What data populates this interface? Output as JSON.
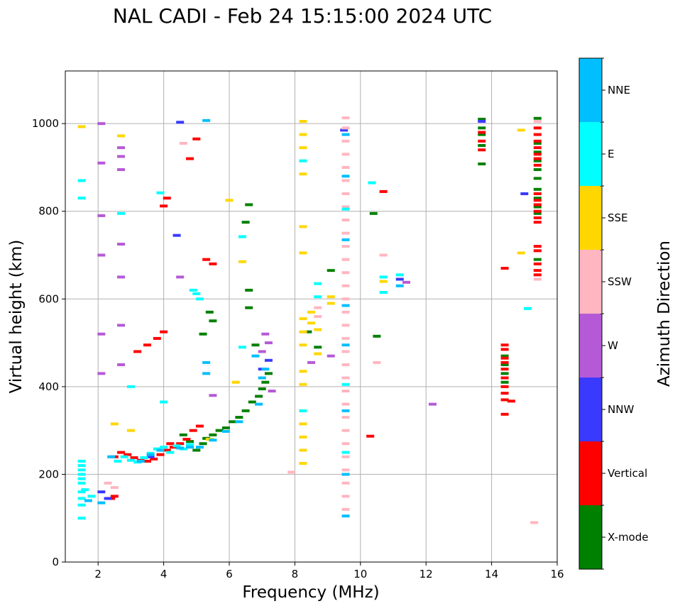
{
  "chart_data": {
    "type": "scatter",
    "title": "NAL CADI - Feb 24 15:15:00 2024 UTC",
    "xlabel": "Frequency (MHz)",
    "ylabel": "Virtual height (km)",
    "xlim": [
      1,
      16
    ],
    "ylim": [
      0,
      1120
    ],
    "xticks": [
      2,
      4,
      6,
      8,
      10,
      12,
      14,
      16
    ],
    "yticks": [
      0,
      200,
      400,
      600,
      800,
      1000
    ],
    "grid": true,
    "colorbar": {
      "label": "Azimuth Direction",
      "categories": [
        "X-mode",
        "Vertical",
        "NNW",
        "W",
        "SSW",
        "SSE",
        "E",
        "NNE"
      ],
      "colors": [
        "#008000",
        "#ff0000",
        "#3a3aff",
        "#b55ad6",
        "#ffb6c1",
        "#ffd700",
        "#00ffff",
        "#00bfff"
      ]
    },
    "series": [
      {
        "name": "X-mode",
        "points": [
          [
            5.0,
            255
          ],
          [
            5.2,
            270
          ],
          [
            5.3,
            282
          ],
          [
            5.5,
            290
          ],
          [
            5.7,
            300
          ],
          [
            5.9,
            306
          ],
          [
            6.1,
            320
          ],
          [
            6.3,
            330
          ],
          [
            6.5,
            345
          ],
          [
            6.7,
            365
          ],
          [
            6.9,
            378
          ],
          [
            7.0,
            395
          ],
          [
            7.1,
            410
          ],
          [
            7.2,
            430
          ],
          [
            5.4,
            570
          ],
          [
            5.5,
            550
          ],
          [
            5.2,
            520
          ],
          [
            6.6,
            620
          ],
          [
            6.6,
            580
          ],
          [
            6.8,
            495
          ],
          [
            6.6,
            815
          ],
          [
            6.5,
            775
          ],
          [
            8.4,
            525
          ],
          [
            8.7,
            490
          ],
          [
            9.1,
            665
          ],
          [
            10.4,
            795
          ],
          [
            10.5,
            515
          ],
          [
            13.7,
            1010
          ],
          [
            13.7,
            990
          ],
          [
            13.7,
            975
          ],
          [
            13.7,
            950
          ],
          [
            13.7,
            908
          ],
          [
            15.4,
            1012
          ],
          [
            15.4,
            955
          ],
          [
            15.4,
            935
          ],
          [
            15.4,
            915
          ],
          [
            15.4,
            895
          ],
          [
            15.4,
            875
          ],
          [
            15.4,
            850
          ],
          [
            15.4,
            830
          ],
          [
            15.4,
            810
          ],
          [
            15.4,
            795
          ],
          [
            15.4,
            690
          ],
          [
            14.4,
            470
          ],
          [
            14.4,
            450
          ],
          [
            14.4,
            430
          ],
          [
            14.4,
            410
          ],
          [
            4.6,
            290
          ],
          [
            4.8,
            275
          ]
        ]
      },
      {
        "name": "Vertical",
        "points": [
          [
            2.5,
            240
          ],
          [
            2.7,
            250
          ],
          [
            2.9,
            245
          ],
          [
            3.1,
            238
          ],
          [
            3.3,
            232
          ],
          [
            3.5,
            230
          ],
          [
            3.7,
            235
          ],
          [
            3.9,
            245
          ],
          [
            4.1,
            255
          ],
          [
            4.3,
            262
          ],
          [
            4.5,
            270
          ],
          [
            4.7,
            280
          ],
          [
            4.9,
            300
          ],
          [
            5.1,
            310
          ],
          [
            2.4,
            145
          ],
          [
            2.5,
            150
          ],
          [
            3.2,
            480
          ],
          [
            3.5,
            495
          ],
          [
            3.8,
            510
          ],
          [
            4.0,
            525
          ],
          [
            4.2,
            270
          ],
          [
            4.0,
            812
          ],
          [
            4.1,
            830
          ],
          [
            5.0,
            965
          ],
          [
            4.8,
            920
          ],
          [
            5.3,
            690
          ],
          [
            5.5,
            680
          ],
          [
            10.7,
            845
          ],
          [
            10.3,
            287
          ],
          [
            13.7,
            980
          ],
          [
            13.7,
            960
          ],
          [
            13.7,
            940
          ],
          [
            14.4,
            670
          ],
          [
            14.4,
            495
          ],
          [
            14.4,
            485
          ],
          [
            14.4,
            465
          ],
          [
            14.4,
            455
          ],
          [
            14.4,
            440
          ],
          [
            14.4,
            420
          ],
          [
            14.4,
            400
          ],
          [
            14.4,
            385
          ],
          [
            14.4,
            370
          ],
          [
            14.4,
            337
          ],
          [
            14.6,
            367
          ],
          [
            15.4,
            990
          ],
          [
            15.4,
            975
          ],
          [
            15.4,
            960
          ],
          [
            15.4,
            945
          ],
          [
            15.4,
            930
          ],
          [
            15.4,
            920
          ],
          [
            15.4,
            905
          ],
          [
            15.4,
            840
          ],
          [
            15.4,
            825
          ],
          [
            15.4,
            815
          ],
          [
            15.4,
            800
          ],
          [
            15.4,
            785
          ],
          [
            15.4,
            775
          ],
          [
            15.4,
            720
          ],
          [
            15.4,
            710
          ],
          [
            15.4,
            680
          ],
          [
            15.4,
            665
          ],
          [
            15.4,
            655
          ]
        ]
      },
      {
        "name": "NNW",
        "points": [
          [
            2.3,
            145
          ],
          [
            3.6,
            240
          ],
          [
            4.4,
            745
          ],
          [
            4.5,
            1003
          ],
          [
            7.2,
            460
          ],
          [
            7.0,
            440
          ],
          [
            13.7,
            1005
          ],
          [
            15.0,
            840
          ],
          [
            11.2,
            645
          ],
          [
            9.5,
            985
          ],
          [
            2.1,
            160
          ]
        ]
      },
      {
        "name": "W",
        "points": [
          [
            2.1,
            1000
          ],
          [
            2.1,
            910
          ],
          [
            2.7,
            945
          ],
          [
            2.7,
            925
          ],
          [
            2.7,
            895
          ],
          [
            2.7,
            725
          ],
          [
            2.1,
            790
          ],
          [
            2.1,
            700
          ],
          [
            2.1,
            520
          ],
          [
            2.1,
            430
          ],
          [
            2.7,
            650
          ],
          [
            2.7,
            540
          ],
          [
            2.7,
            450
          ],
          [
            7.0,
            480
          ],
          [
            7.2,
            500
          ],
          [
            7.1,
            520
          ],
          [
            8.5,
            455
          ],
          [
            9.1,
            470
          ],
          [
            11.4,
            638
          ],
          [
            12.2,
            360
          ],
          [
            5.5,
            380
          ],
          [
            4.5,
            650
          ],
          [
            7.3,
            390
          ]
        ]
      },
      {
        "name": "SSW",
        "points": [
          [
            2.5,
            170
          ],
          [
            2.3,
            180
          ],
          [
            7.9,
            205
          ],
          [
            9.55,
            1013
          ],
          [
            9.55,
            990
          ],
          [
            9.55,
            960
          ],
          [
            9.55,
            930
          ],
          [
            9.55,
            900
          ],
          [
            9.55,
            870
          ],
          [
            9.55,
            840
          ],
          [
            9.55,
            810
          ],
          [
            9.55,
            780
          ],
          [
            9.55,
            750
          ],
          [
            9.55,
            720
          ],
          [
            9.55,
            690
          ],
          [
            9.55,
            660
          ],
          [
            9.55,
            630
          ],
          [
            9.55,
            600
          ],
          [
            9.55,
            570
          ],
          [
            9.55,
            540
          ],
          [
            9.55,
            510
          ],
          [
            9.55,
            480
          ],
          [
            9.55,
            450
          ],
          [
            9.55,
            420
          ],
          [
            9.55,
            390
          ],
          [
            9.55,
            360
          ],
          [
            9.55,
            330
          ],
          [
            9.55,
            300
          ],
          [
            9.55,
            270
          ],
          [
            9.55,
            240
          ],
          [
            9.55,
            210
          ],
          [
            9.55,
            180
          ],
          [
            9.55,
            150
          ],
          [
            9.55,
            120
          ],
          [
            8.7,
            580
          ],
          [
            8.7,
            560
          ],
          [
            10.7,
            700
          ],
          [
            10.5,
            455
          ],
          [
            15.4,
            1005
          ],
          [
            15.4,
            645
          ],
          [
            15.3,
            90
          ],
          [
            4.6,
            955
          ]
        ]
      },
      {
        "name": "SSE",
        "points": [
          [
            1.5,
            993
          ],
          [
            8.25,
            1005
          ],
          [
            8.25,
            975
          ],
          [
            8.25,
            945
          ],
          [
            8.25,
            915
          ],
          [
            8.25,
            885
          ],
          [
            8.25,
            765
          ],
          [
            8.25,
            705
          ],
          [
            8.25,
            555
          ],
          [
            8.25,
            525
          ],
          [
            8.25,
            495
          ],
          [
            8.25,
            435
          ],
          [
            8.25,
            405
          ],
          [
            8.25,
            345
          ],
          [
            8.25,
            315
          ],
          [
            8.25,
            285
          ],
          [
            8.25,
            255
          ],
          [
            8.25,
            225
          ],
          [
            8.5,
            545
          ],
          [
            8.5,
            570
          ],
          [
            8.7,
            530
          ],
          [
            8.7,
            475
          ],
          [
            9.1,
            605
          ],
          [
            9.1,
            590
          ],
          [
            10.7,
            640
          ],
          [
            14.9,
            985
          ],
          [
            14.9,
            705
          ],
          [
            6.4,
            685
          ],
          [
            6.2,
            410
          ],
          [
            5.4,
            280
          ],
          [
            3.0,
            300
          ],
          [
            2.7,
            972
          ],
          [
            2.5,
            315
          ],
          [
            6.0,
            825
          ]
        ]
      },
      {
        "name": "E",
        "points": [
          [
            1.5,
            230
          ],
          [
            1.5,
            220
          ],
          [
            1.5,
            210
          ],
          [
            1.5,
            200
          ],
          [
            1.5,
            190
          ],
          [
            1.5,
            180
          ],
          [
            1.5,
            160
          ],
          [
            1.5,
            145
          ],
          [
            1.5,
            130
          ],
          [
            1.5,
            100
          ],
          [
            1.5,
            870
          ],
          [
            1.5,
            830
          ],
          [
            1.6,
            165
          ],
          [
            1.8,
            150
          ],
          [
            2.6,
            230
          ],
          [
            2.8,
            240
          ],
          [
            3.0,
            232
          ],
          [
            3.2,
            228
          ],
          [
            3.4,
            238
          ],
          [
            3.6,
            248
          ],
          [
            3.8,
            258
          ],
          [
            4.0,
            262
          ],
          [
            4.2,
            250
          ],
          [
            4.4,
            265
          ],
          [
            4.6,
            258
          ],
          [
            4.8,
            268
          ],
          [
            5.0,
            612
          ],
          [
            4.9,
            620
          ],
          [
            5.1,
            600
          ],
          [
            4.0,
            365
          ],
          [
            3.9,
            842
          ],
          [
            2.7,
            795
          ],
          [
            3.0,
            400
          ],
          [
            8.7,
            635
          ],
          [
            8.7,
            605
          ],
          [
            8.25,
            915
          ],
          [
            8.25,
            345
          ],
          [
            10.35,
            865
          ],
          [
            10.7,
            650
          ],
          [
            10.7,
            615
          ],
          [
            11.2,
            655
          ],
          [
            15.1,
            578
          ],
          [
            9.55,
            805
          ],
          [
            9.55,
            405
          ],
          [
            9.55,
            250
          ],
          [
            6.4,
            742
          ],
          [
            6.4,
            490
          ]
        ]
      },
      {
        "name": "NNE",
        "points": [
          [
            2.4,
            240
          ],
          [
            3.3,
            230
          ],
          [
            3.6,
            245
          ],
          [
            3.9,
            255
          ],
          [
            4.5,
            260
          ],
          [
            4.8,
            262
          ],
          [
            5.1,
            262
          ],
          [
            5.5,
            278
          ],
          [
            5.9,
            298
          ],
          [
            6.3,
            320
          ],
          [
            7.0,
            420
          ],
          [
            7.1,
            440
          ],
          [
            6.8,
            470
          ],
          [
            5.3,
            455
          ],
          [
            5.3,
            430
          ],
          [
            6.9,
            360
          ],
          [
            9.55,
            975
          ],
          [
            9.55,
            880
          ],
          [
            9.55,
            735
          ],
          [
            9.55,
            585
          ],
          [
            9.55,
            495
          ],
          [
            9.55,
            345
          ],
          [
            9.55,
            200
          ],
          [
            9.55,
            105
          ],
          [
            5.3,
            1007
          ],
          [
            11.2,
            630
          ],
          [
            1.7,
            140
          ],
          [
            2.1,
            135
          ]
        ]
      }
    ]
  }
}
